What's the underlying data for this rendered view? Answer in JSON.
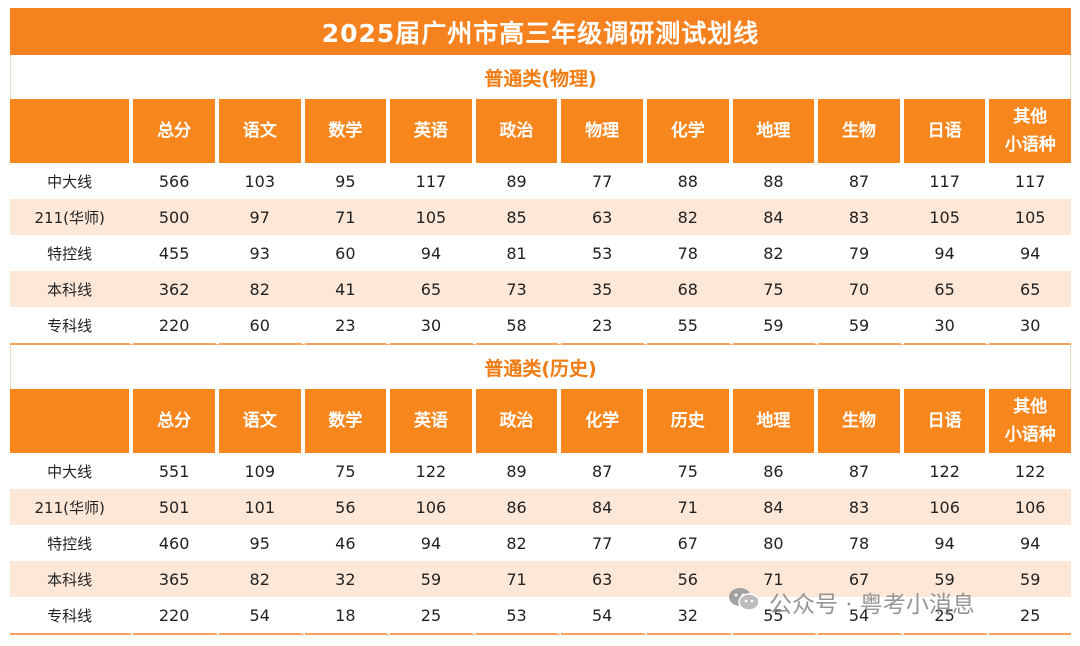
{
  "title": "2025届广州市高三年级调研测试划线",
  "tables": [
    {
      "subtitle": "普通类(物理)",
      "headers": [
        "",
        "总分",
        "语文",
        "数学",
        "英语",
        "政治",
        "物理",
        "化学",
        "地理",
        "生物",
        "日语",
        "其他\n小语种"
      ],
      "rows": [
        [
          "中大线",
          "566",
          "103",
          "95",
          "117",
          "89",
          "77",
          "88",
          "88",
          "87",
          "117",
          "117"
        ],
        [
          "211(华师)",
          "500",
          "97",
          "71",
          "105",
          "85",
          "63",
          "82",
          "84",
          "83",
          "105",
          "105"
        ],
        [
          "特控线",
          "455",
          "93",
          "60",
          "94",
          "81",
          "53",
          "78",
          "82",
          "79",
          "94",
          "94"
        ],
        [
          "本科线",
          "362",
          "82",
          "41",
          "65",
          "73",
          "35",
          "68",
          "75",
          "70",
          "65",
          "65"
        ],
        [
          "专科线",
          "220",
          "60",
          "23",
          "30",
          "58",
          "23",
          "55",
          "59",
          "59",
          "30",
          "30"
        ]
      ]
    },
    {
      "subtitle": "普通类(历史)",
      "headers": [
        "",
        "总分",
        "语文",
        "数学",
        "英语",
        "政治",
        "化学",
        "历史",
        "地理",
        "生物",
        "日语",
        "其他\n小语种"
      ],
      "rows": [
        [
          "中大线",
          "551",
          "109",
          "75",
          "122",
          "89",
          "87",
          "75",
          "86",
          "87",
          "122",
          "122"
        ],
        [
          "211(华师)",
          "501",
          "101",
          "56",
          "106",
          "86",
          "84",
          "71",
          "84",
          "83",
          "106",
          "106"
        ],
        [
          "特控线",
          "460",
          "95",
          "46",
          "94",
          "82",
          "77",
          "67",
          "80",
          "78",
          "94",
          "94"
        ],
        [
          "本科线",
          "365",
          "82",
          "32",
          "59",
          "71",
          "63",
          "56",
          "71",
          "67",
          "59",
          "59"
        ],
        [
          "专科线",
          "220",
          "54",
          "18",
          "25",
          "53",
          "54",
          "32",
          "55",
          "54",
          "25",
          "25"
        ]
      ]
    }
  ],
  "watermark": {
    "text": "公众号 · 粤考小消息",
    "icon": "wechat-icon"
  }
}
